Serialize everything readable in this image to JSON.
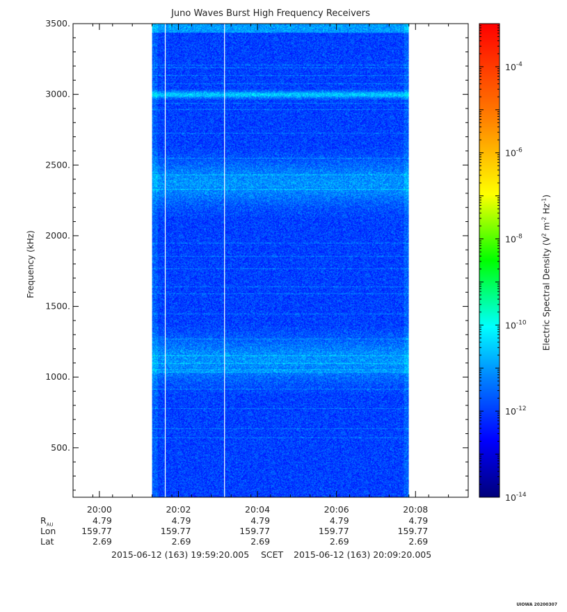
{
  "chart_data": {
    "type": "heatmap",
    "title": "Juno Waves Burst High Frequency Receivers",
    "ylabel": "Frequency (kHz)",
    "colorbar_label": "Electric Spectral Density (V² m⁻² Hz⁻¹)",
    "colorbar_title_parts": [
      "Electric Spectral Density (V",
      "2",
      " m",
      "-2",
      " Hz",
      "-1",
      ")"
    ],
    "ylim": [
      150,
      3500
    ],
    "yticks": [
      500,
      1000,
      1500,
      2000,
      2500,
      3000,
      3500
    ],
    "ytick_labels": [
      "500.",
      "1000.",
      "1500.",
      "2000.",
      "2500.",
      "3000.",
      "3500."
    ],
    "xlim_minutes": [
      0,
      10
    ],
    "x_start": "2015-06-12 19:59:20.005",
    "x_end": "2015-06-12 20:09:20.005",
    "xtick_labels": [
      "20:00",
      "20:02",
      "20:04",
      "20:06",
      "20:08"
    ],
    "data_start": "20:01:20",
    "data_end": "20:07:50",
    "colorbar_range_log10": [
      -14,
      -3
    ],
    "colorbar_ticks": [
      {
        "base": "10",
        "exp": "-4",
        "value": -4
      },
      {
        "base": "10",
        "exp": "-6",
        "value": -6
      },
      {
        "base": "10",
        "exp": "-8",
        "value": -8
      },
      {
        "base": "10",
        "exp": "-10",
        "value": -10
      },
      {
        "base": "10",
        "exp": "-12",
        "value": -12
      },
      {
        "base": "10",
        "exp": "-14",
        "value": -14
      }
    ],
    "colormap": [
      "#000080",
      "#0000ff",
      "#0080ff",
      "#00ffff",
      "#00ff00",
      "#ffff00",
      "#ff8000",
      "#ff0000"
    ],
    "enhanced_bands_khz": [
      [
        1000,
        1250
      ],
      [
        2250,
        2500
      ],
      [
        3000,
        3000
      ]
    ],
    "gap_lines": [
      "20:01:40",
      "20:03:10"
    ]
  },
  "ephemeris": {
    "rows": [
      {
        "name": "R",
        "sub": "AU",
        "values": [
          "4.79",
          "4.79",
          "4.79",
          "4.79",
          "4.79"
        ]
      },
      {
        "name": "Lon",
        "sub": "",
        "values": [
          "159.77",
          "159.77",
          "159.77",
          "159.77",
          "159.77"
        ]
      },
      {
        "name": "Lat",
        "sub": "",
        "values": [
          "2.69",
          "2.69",
          "2.69",
          "2.69",
          "2.69"
        ]
      }
    ]
  },
  "footer": {
    "start": "2015-06-12 (163) 19:59:20.005",
    "middle": "SCET",
    "end": "2015-06-12 (163) 20:09:20.005"
  },
  "credit": "UIOWA 20200307"
}
